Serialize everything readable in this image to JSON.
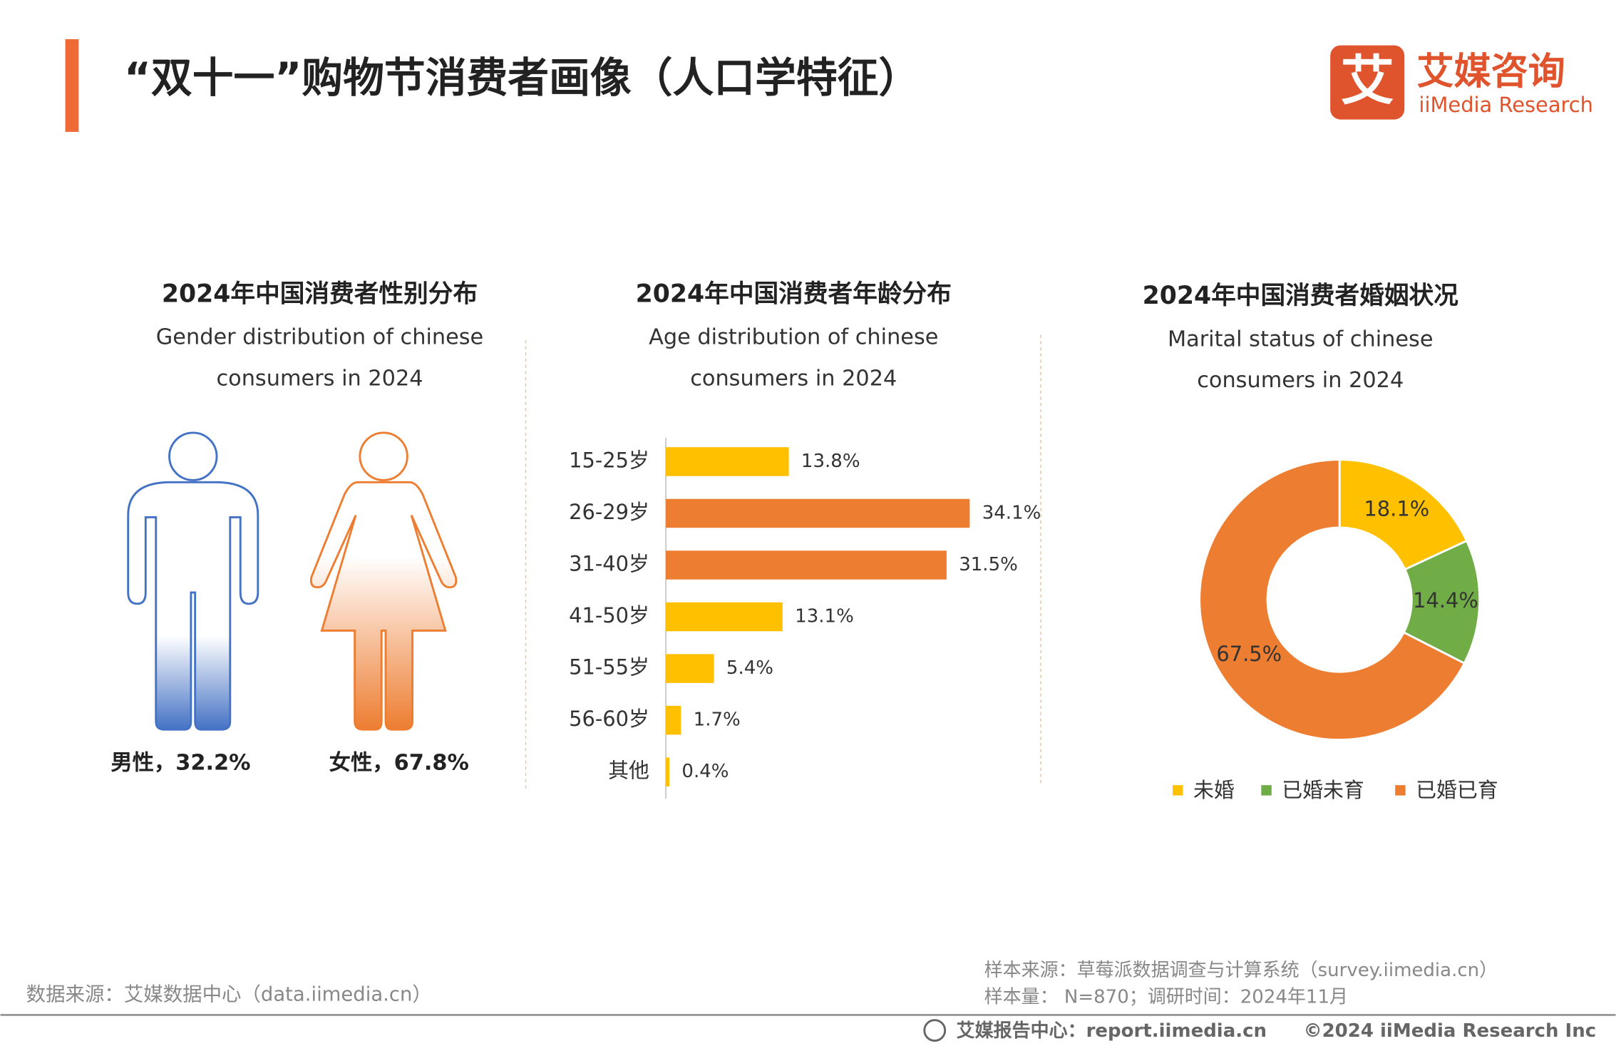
{
  "header": {
    "title": "“双十一”购物节消费者画像（人口学特征）",
    "logo_mark": "艾",
    "logo_name": "艾媒咨询",
    "logo_sub": "iiMedia Research"
  },
  "chart_data": [
    {
      "type": "pictogram",
      "title": "2024年中国消费者性别分布",
      "subtitle": [
        "Gender distribution of chinese",
        "consumers in 2024"
      ],
      "values": [
        32.2,
        67.8
      ],
      "value_labels": [
        "男性，32.2%",
        "女性，67.8%"
      ],
      "colors": [
        "#4472C4",
        "#ED7D31"
      ]
    },
    {
      "type": "hbar",
      "title": "2024年中国消费者年龄分布",
      "subtitle": [
        "Age distribution of chinese",
        "consumers in 2024"
      ],
      "categories": [
        "15-25岁",
        "26-29岁",
        "31-40岁",
        "41-50岁",
        "51-55岁",
        "56-60岁",
        "其他"
      ],
      "values": [
        13.8,
        34.1,
        31.5,
        13.1,
        5.4,
        1.7,
        0.4
      ],
      "value_labels": [
        "13.8%",
        "34.1%",
        "31.5%",
        "13.1%",
        "5.4%",
        "1.7%",
        "0.4%"
      ],
      "colors": [
        "#FFC000",
        "#ED7D31",
        "#ED7D31",
        "#FFC000",
        "#FFC000",
        "#FFC000",
        "#FFC000"
      ]
    },
    {
      "type": "donut",
      "title": "2024年中国消费者婚姻状况",
      "subtitle": [
        "Marital status of chinese",
        "consumers in 2024"
      ],
      "categories": [
        "未婚",
        "已婚未育",
        "已婚已育"
      ],
      "values": [
        18.1,
        14.4,
        67.5
      ],
      "value_labels": [
        "18.1%",
        "14.4%",
        "67.5%"
      ],
      "colors": [
        "#FFC000",
        "#70AD47",
        "#ED7D31"
      ],
      "legend": "bottom"
    }
  ],
  "footer": {
    "source": "数据来源：艾媒数据中心（data.iimedia.cn）",
    "sample_source": "样本来源：草莓派数据调查与计算系统（survey.iimedia.cn）",
    "sample_info": "样本量： N=870；调研时间：2024年11月",
    "report_center": "艾媒报告中心：report.iimedia.cn",
    "copyright": "©2024  iiMedia Research  Inc"
  }
}
